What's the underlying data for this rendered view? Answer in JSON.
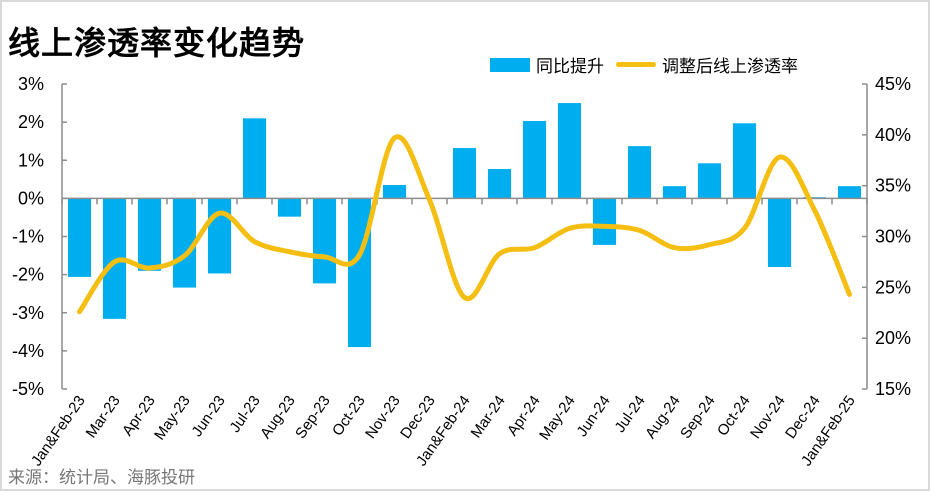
{
  "chart_data": {
    "type": "bar+line",
    "title": "线上渗透率变化趋势",
    "categories": [
      "Jan&Feb-23",
      "Mar-23",
      "Apr-23",
      "May-23",
      "Jun-23",
      "Jul-23",
      "Aug-23",
      "Sep-23",
      "Oct-23",
      "Nov-23",
      "Dec-23",
      "Jan&Feb-24",
      "Mar-24",
      "Apr-24",
      "May-24",
      "Jun-24",
      "Jul-24",
      "Aug-24",
      "Sep-24",
      "Oct-24",
      "Nov-24",
      "Dec-24",
      "Jan&Feb-25"
    ],
    "series": [
      {
        "name": "同比提升",
        "type": "bar",
        "axis": "left",
        "color": "#00AEEF",
        "values": [
          -2.06,
          -3.16,
          -1.9,
          -2.34,
          -1.97,
          2.1,
          -0.48,
          -2.23,
          -3.9,
          0.35,
          0,
          1.32,
          0.77,
          2.03,
          2.5,
          -1.22,
          1.37,
          0.32,
          0.92,
          1.97,
          -1.8,
          0.03,
          0.32
        ]
      },
      {
        "name": "调整后线上渗透率",
        "type": "line",
        "axis": "right",
        "color": "#F5BE12",
        "values": [
          22.6,
          27.5,
          26.9,
          28.1,
          32.3,
          29.5,
          28.5,
          28.0,
          28.2,
          39.7,
          33.6,
          24.0,
          28.3,
          28.9,
          30.8,
          31.0,
          30.6,
          28.9,
          29.2,
          30.8,
          37.8,
          32.6,
          24.3
        ]
      }
    ],
    "left_axis": {
      "ylim": [
        -5,
        3
      ],
      "ticks": [
        "3%",
        "2%",
        "1%",
        "0%",
        "-1%",
        "-2%",
        "-3%",
        "-4%",
        "-5%"
      ]
    },
    "right_axis": {
      "ylim": [
        15,
        45
      ],
      "ticks": [
        "45%",
        "40%",
        "35%",
        "30%",
        "25%",
        "20%",
        "15%"
      ]
    },
    "legend": "top-right",
    "grid": false
  },
  "source": "来源：统计局、海豚投研"
}
